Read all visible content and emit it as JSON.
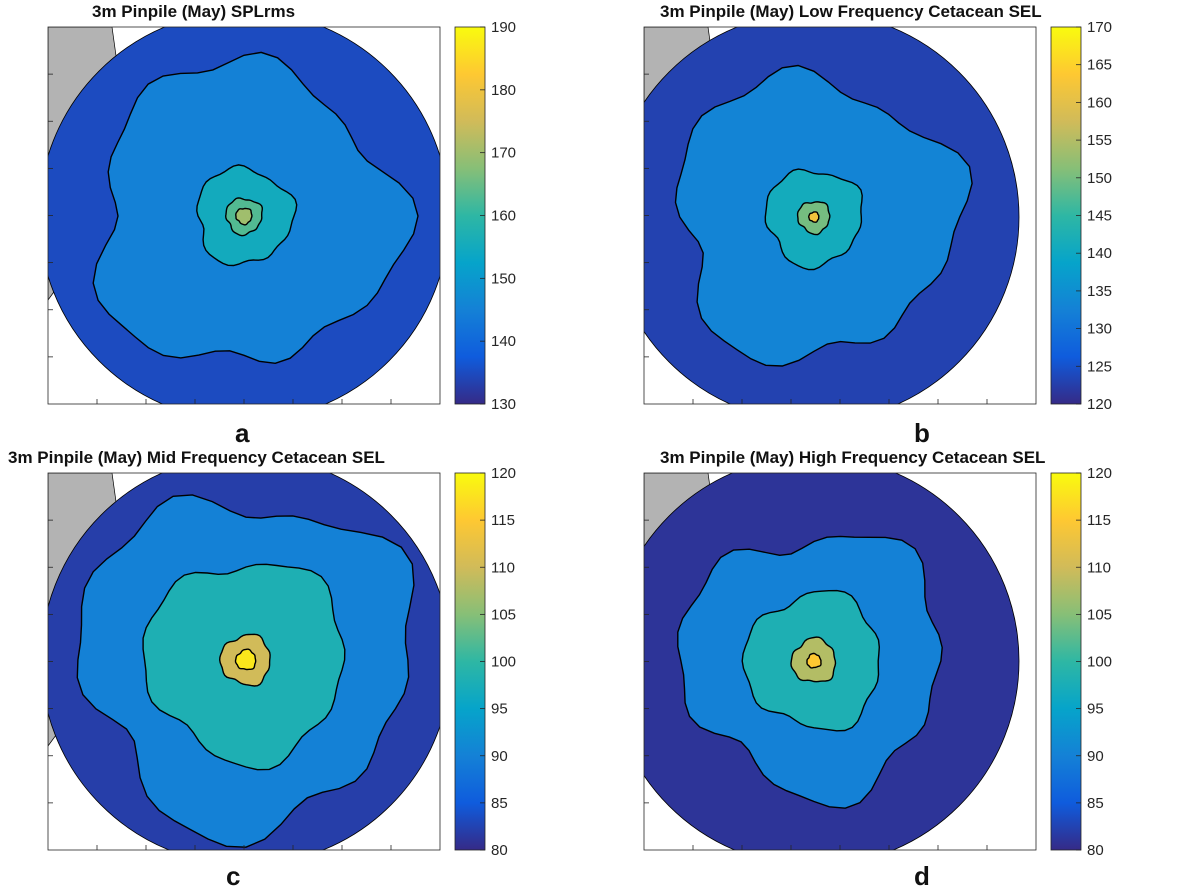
{
  "colors": {
    "land": "#b3b3b3",
    "cmap": [
      "#352a87",
      "#0f5cdd",
      "#1481d6",
      "#06a4ca",
      "#2eb7a4",
      "#87bf77",
      "#d1bb59",
      "#fec832",
      "#f9fb0e"
    ]
  },
  "panels": [
    {
      "id": "a",
      "title": "3m Pinpile (May) SPLrms",
      "label": "a",
      "colorbar_ticks": [
        "190",
        "180",
        "170",
        "160",
        "150",
        "140",
        "130"
      ],
      "clim": [
        130,
        190
      ],
      "levels": [
        135,
        145,
        155,
        163,
        170
      ]
    },
    {
      "id": "b",
      "title": "3m Pinpile (May) Low Frequency Cetacean SEL",
      "label": "b",
      "colorbar_ticks": [
        "170",
        "165",
        "160",
        "155",
        "150",
        "145",
        "140",
        "135",
        "130",
        "125",
        "120"
      ],
      "clim": [
        120,
        170
      ],
      "levels": [
        123,
        133,
        141,
        150,
        162
      ]
    },
    {
      "id": "c",
      "title": "3m Pinpile (May) Mid Frequency Cetacean SEL",
      "label": "c",
      "colorbar_ticks": [
        "120",
        "115",
        "110",
        "105",
        "100",
        "95",
        "90",
        "85",
        "80"
      ],
      "clim": [
        80,
        120
      ],
      "levels": [
        82,
        90,
        98,
        110,
        118
      ]
    },
    {
      "id": "d",
      "title": "3m Pinpile (May) High Frequency Cetacean SEL",
      "label": "d",
      "colorbar_ticks": [
        "120",
        "115",
        "110",
        "105",
        "100",
        "95",
        "90",
        "85",
        "80"
      ],
      "clim": [
        80,
        120
      ],
      "levels": [
        81,
        90,
        98,
        108,
        115
      ]
    }
  ]
}
